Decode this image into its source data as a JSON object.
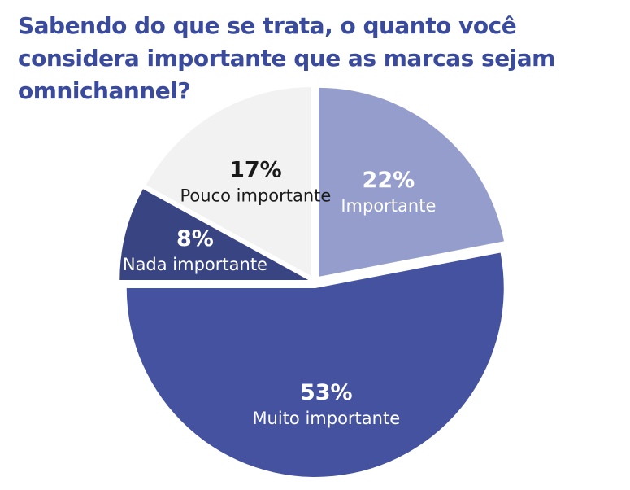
{
  "chart_data": {
    "type": "pie",
    "title": "Sabendo do que se trata, o quanto você considera importante que as marcas sejam omnichannel?",
    "slices": [
      {
        "label": "Importante",
        "value": 22,
        "value_label": "22%",
        "color": "#949dcb",
        "text_color": "#ffffff"
      },
      {
        "label": "Muito importante",
        "value": 53,
        "value_label": "53%",
        "color": "#4452a0",
        "text_color": "#ffffff"
      },
      {
        "label": "Nada importante",
        "value": 8,
        "value_label": "8%",
        "color": "#394482",
        "text_color": "#ffffff"
      },
      {
        "label": "Pouco importante",
        "value": 17,
        "value_label": "17%",
        "color": "#f3f2f3",
        "text_color": "#1a1a1a"
      }
    ],
    "start_angle_deg": 0,
    "direction": "clockwise",
    "exploded": true
  }
}
